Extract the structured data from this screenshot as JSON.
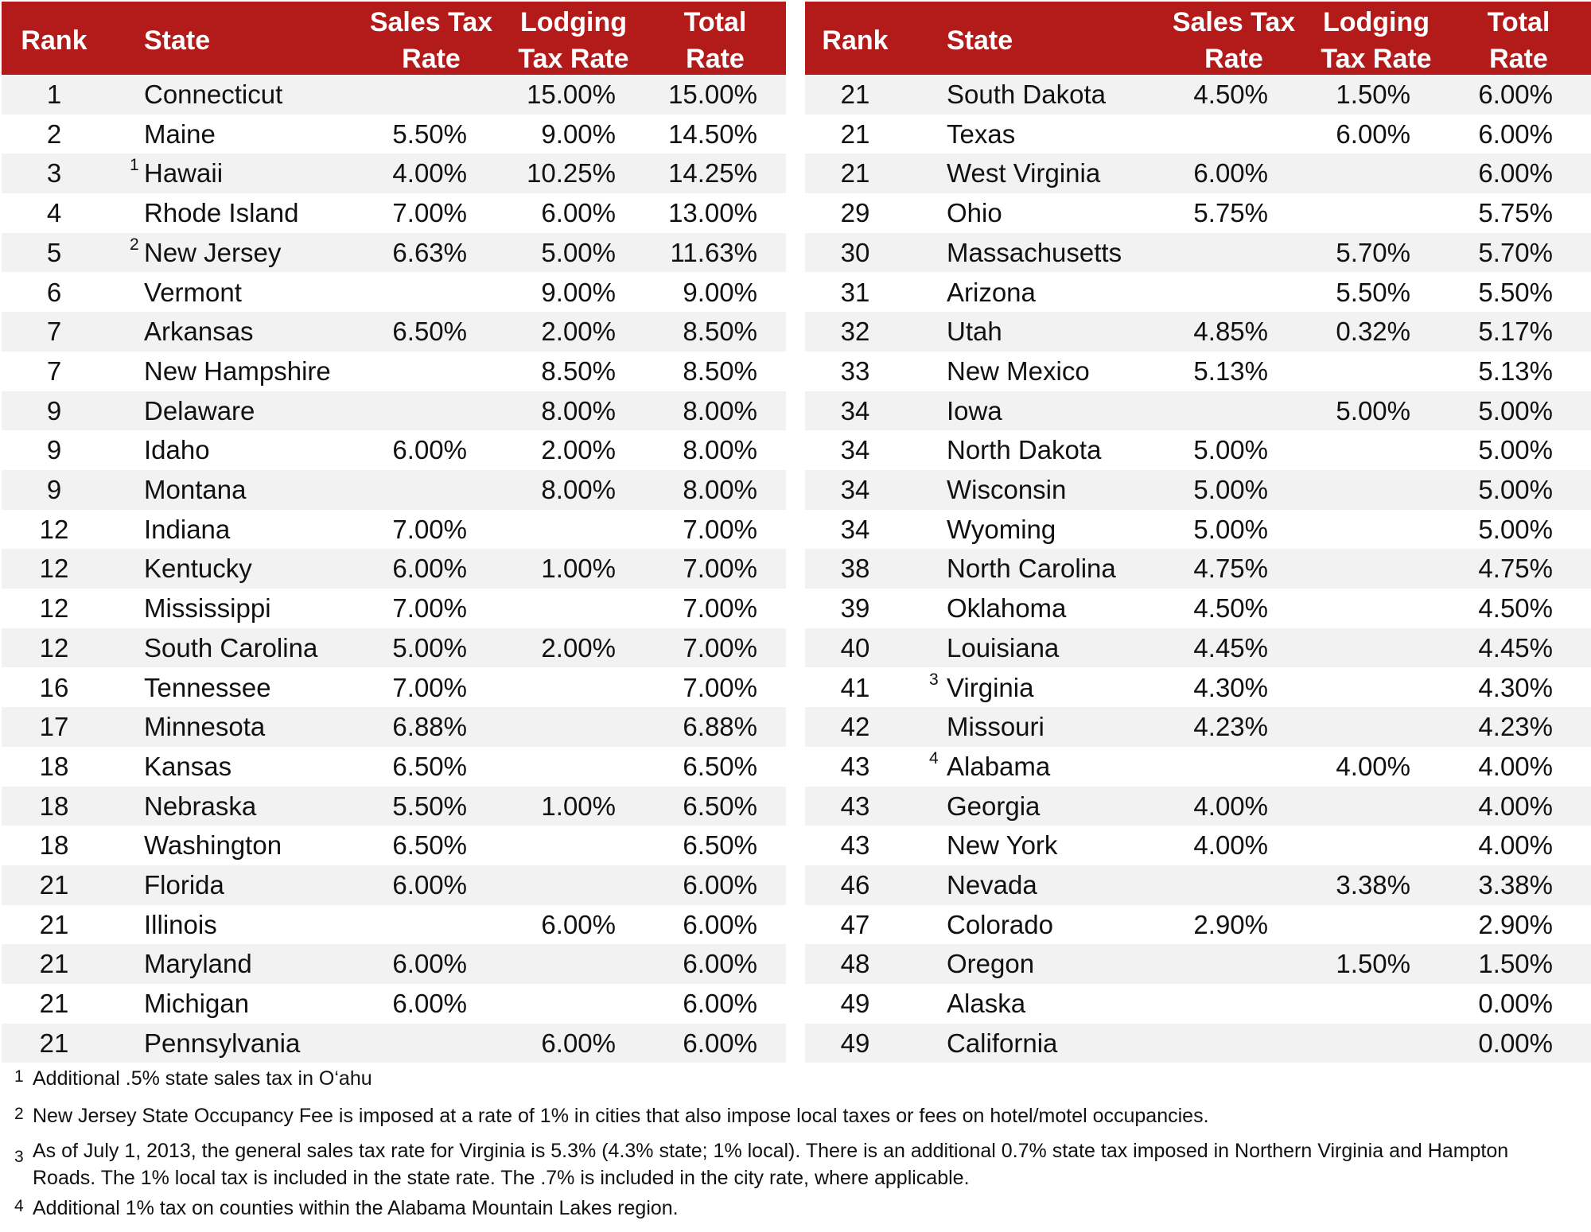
{
  "tables": [
    {
      "header": {
        "rank": "Rank",
        "state": "State",
        "sales": [
          "Sales Tax",
          "Rate"
        ],
        "lodging": [
          "Lodging",
          "Tax Rate"
        ],
        "total": [
          "Total",
          "Rate"
        ]
      },
      "rows": [
        {
          "rank": 1,
          "state": "Connecticut",
          "lodging": "15.00%",
          "total": "15.00%"
        },
        {
          "rank": 2,
          "state": "Maine",
          "sales": "5.50%",
          "lodging": "9.00%",
          "total": "14.50%"
        },
        {
          "rank": 3,
          "note": "1",
          "state": "Hawaii",
          "sales": "4.00%",
          "lodging": "10.25%",
          "total": "14.25%"
        },
        {
          "rank": 4,
          "state": "Rhode Island",
          "sales": "7.00%",
          "lodging": "6.00%",
          "total": "13.00%"
        },
        {
          "rank": 5,
          "note": "2",
          "state": "New Jersey",
          "sales": "6.63%",
          "lodging": "5.00%",
          "total": "11.63%"
        },
        {
          "rank": 6,
          "state": "Vermont",
          "lodging": "9.00%",
          "total": "9.00%"
        },
        {
          "rank": 7,
          "state": "Arkansas",
          "sales": "6.50%",
          "lodging": "2.00%",
          "total": "8.50%"
        },
        {
          "rank": 7,
          "state": "New Hampshire",
          "lodging": "8.50%",
          "total": "8.50%"
        },
        {
          "rank": 9,
          "state": "Delaware",
          "lodging": "8.00%",
          "total": "8.00%"
        },
        {
          "rank": 9,
          "state": "Idaho",
          "sales": "6.00%",
          "lodging": "2.00%",
          "total": "8.00%"
        },
        {
          "rank": 9,
          "state": "Montana",
          "lodging": "8.00%",
          "total": "8.00%"
        },
        {
          "rank": 12,
          "state": "Indiana",
          "sales": "7.00%",
          "total": "7.00%"
        },
        {
          "rank": 12,
          "state": "Kentucky",
          "sales": "6.00%",
          "lodging": "1.00%",
          "total": "7.00%"
        },
        {
          "rank": 12,
          "state": "Mississippi",
          "sales": "7.00%",
          "total": "7.00%"
        },
        {
          "rank": 12,
          "state": "South Carolina",
          "sales": "5.00%",
          "lodging": "2.00%",
          "total": "7.00%"
        },
        {
          "rank": 16,
          "state": "Tennessee",
          "sales": "7.00%",
          "total": "7.00%"
        },
        {
          "rank": 17,
          "state": "Minnesota",
          "sales": "6.88%",
          "total": "6.88%"
        },
        {
          "rank": 18,
          "state": "Kansas",
          "sales": "6.50%",
          "total": "6.50%"
        },
        {
          "rank": 18,
          "state": "Nebraska",
          "sales": "5.50%",
          "lodging": "1.00%",
          "total": "6.50%"
        },
        {
          "rank": 18,
          "state": "Washington",
          "sales": "6.50%",
          "total": "6.50%"
        },
        {
          "rank": 21,
          "state": "Florida",
          "sales": "6.00%",
          "total": "6.00%"
        },
        {
          "rank": 21,
          "state": "Illinois",
          "lodging": "6.00%",
          "total": "6.00%"
        },
        {
          "rank": 21,
          "state": "Maryland",
          "sales": "6.00%",
          "total": "6.00%"
        },
        {
          "rank": 21,
          "state": "Michigan",
          "sales": "6.00%",
          "total": "6.00%"
        },
        {
          "rank": 21,
          "state": "Pennsylvania",
          "lodging": "6.00%",
          "total": "6.00%"
        }
      ]
    },
    {
      "header": {
        "rank": "Rank",
        "state": "State",
        "sales": [
          "Sales Tax",
          "Rate"
        ],
        "lodging": [
          "Lodging",
          "Tax Rate"
        ],
        "total": [
          "Total",
          "Rate"
        ]
      },
      "rows": [
        {
          "rank": 21,
          "state": "South Dakota",
          "sales": "4.50%",
          "lodging": "1.50%",
          "total": "6.00%"
        },
        {
          "rank": 21,
          "state": "Texas",
          "lodging": "6.00%",
          "total": "6.00%"
        },
        {
          "rank": 21,
          "state": "West Virginia",
          "sales": "6.00%",
          "total": "6.00%"
        },
        {
          "rank": 29,
          "state": "Ohio",
          "sales": "5.75%",
          "total": "5.75%"
        },
        {
          "rank": 30,
          "state": "Massachusetts",
          "lodging": "5.70%",
          "total": "5.70%"
        },
        {
          "rank": 31,
          "state": "Arizona",
          "lodging": "5.50%",
          "total": "5.50%"
        },
        {
          "rank": 32,
          "state": "Utah",
          "sales": "4.85%",
          "lodging": "0.32%",
          "total": "5.17%"
        },
        {
          "rank": 33,
          "state": "New Mexico",
          "sales": "5.13%",
          "total": "5.13%"
        },
        {
          "rank": 34,
          "state": "Iowa",
          "lodging": "5.00%",
          "total": "5.00%"
        },
        {
          "rank": 34,
          "state": "North Dakota",
          "sales": "5.00%",
          "total": "5.00%"
        },
        {
          "rank": 34,
          "state": "Wisconsin",
          "sales": "5.00%",
          "total": "5.00%"
        },
        {
          "rank": 34,
          "state": "Wyoming",
          "sales": "5.00%",
          "total": "5.00%"
        },
        {
          "rank": 38,
          "state": "North Carolina",
          "sales": "4.75%",
          "total": "4.75%"
        },
        {
          "rank": 39,
          "state": "Oklahoma",
          "sales": "4.50%",
          "total": "4.50%"
        },
        {
          "rank": 40,
          "state": "Louisiana",
          "sales": "4.45%",
          "total": "4.45%"
        },
        {
          "rank": 41,
          "note": "3",
          "state": "Virginia",
          "sales": "4.30%",
          "total": "4.30%"
        },
        {
          "rank": 42,
          "state": "Missouri",
          "sales": "4.23%",
          "total": "4.23%"
        },
        {
          "rank": 43,
          "note": "4",
          "state": "Alabama",
          "lodging": "4.00%",
          "total": "4.00%"
        },
        {
          "rank": 43,
          "state": "Georgia",
          "sales": "4.00%",
          "total": "4.00%"
        },
        {
          "rank": 43,
          "state": "New York",
          "sales": "4.00%",
          "total": "4.00%"
        },
        {
          "rank": 46,
          "state": "Nevada",
          "lodging": "3.38%",
          "total": "3.38%"
        },
        {
          "rank": 47,
          "state": "Colorado",
          "sales": "2.90%",
          "total": "2.90%"
        },
        {
          "rank": 48,
          "state": "Oregon",
          "lodging": "1.50%",
          "total": "1.50%"
        },
        {
          "rank": 49,
          "state": "Alaska",
          "total": "0.00%"
        },
        {
          "rank": 49,
          "state": "California",
          "total": "0.00%"
        }
      ]
    }
  ],
  "footnotes": [
    {
      "number": "1",
      "text": "Additional .5% state sales tax in O‘ahu"
    },
    {
      "number": "2",
      "text": "New Jersey State Occupancy Fee is imposed at a rate of 1% in cities that also impose local taxes or fees on hotel/motel occupancies."
    },
    {
      "number": "3",
      "text": "As of July 1, 2013, the general sales tax rate for Virginia is 5.3% (4.3% state; 1% local). There is an additional 0.7% state tax imposed in Northern Virginia and Hampton Roads. The 1% local tax is included in the state rate. The .7% is included in the city rate, where applicable."
    },
    {
      "number": "4",
      "text": "Additional 1% tax on counties within the Alabama Mountain Lakes region."
    }
  ]
}
